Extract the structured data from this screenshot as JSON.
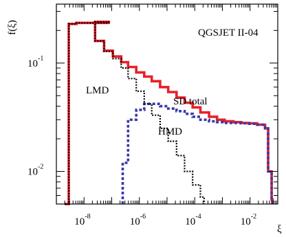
{
  "chart_data": {
    "type": "line",
    "title": "QGSJET II-04",
    "xlabel": "ξ",
    "ylabel": "f(ξ)",
    "x_scale": "log",
    "y_scale": "log",
    "xlim": [
      1e-09,
      0.1
    ],
    "ylim": [
      0.005,
      0.35
    ],
    "x_ticks": [
      {
        "base": "10",
        "exp": "-8",
        "value": 1e-08
      },
      {
        "base": "10",
        "exp": "-6",
        "value": 1e-06
      },
      {
        "base": "10",
        "exp": "-4",
        "value": 0.0001
      },
      {
        "base": "10",
        "exp": "-2",
        "value": 0.01
      }
    ],
    "y_ticks": [
      {
        "base": "10",
        "exp": "-1",
        "value": 0.1
      },
      {
        "base": "10",
        "exp": "-2",
        "value": 0.01
      }
    ],
    "legend": "none",
    "grid": false,
    "annotations": [
      {
        "text": "LMD",
        "series": "LMD"
      },
      {
        "text": "SD total",
        "series": "SD total"
      },
      {
        "text": "HMD",
        "series": "HMD"
      }
    ],
    "series": [
      {
        "name": "SD total",
        "color": "#e8202a",
        "style": "solid",
        "points": [
          [
            2e-09,
            0.005
          ],
          [
            2e-09,
            0.005
          ],
          [
            2.8e-09,
            0.23
          ],
          [
            5.3e-09,
            0.235
          ],
          [
            7.8e-08,
            0.24
          ],
          [
            2.5e-08,
            0.16
          ],
          [
            5.3e-08,
            0.13
          ],
          [
            1.1e-07,
            0.115
          ],
          [
            2.2e-07,
            0.102
          ],
          [
            3.9e-07,
            0.092
          ],
          [
            7.7e-07,
            0.082
          ],
          [
            1.5e-06,
            0.075
          ],
          [
            2.8e-06,
            0.068
          ],
          [
            5.6e-06,
            0.06
          ],
          [
            1.1e-05,
            0.054
          ],
          [
            2.2e-05,
            0.048
          ],
          [
            4.3e-05,
            0.043
          ],
          [
            8.4e-05,
            0.039
          ],
          [
            0.00016,
            0.035
          ],
          [
            0.00033,
            0.032
          ],
          [
            0.00064,
            0.03
          ],
          [
            0.0012,
            0.029
          ],
          [
            0.0025,
            0.0285
          ],
          [
            0.0048,
            0.028
          ],
          [
            0.0092,
            0.0278
          ],
          [
            0.018,
            0.027
          ],
          [
            0.035,
            0.025
          ],
          [
            0.045,
            0.01
          ],
          [
            0.06,
            0.0055
          ],
          [
            0.065,
            0.005
          ]
        ]
      },
      {
        "name": "LMD",
        "color": "#000000",
        "style": "dotted",
        "points": [
          [
            2e-09,
            0.005
          ],
          [
            2.8e-09,
            0.23
          ],
          [
            5.3e-09,
            0.235
          ],
          [
            7.8e-08,
            0.24
          ],
          [
            2.5e-08,
            0.16
          ],
          [
            5.3e-08,
            0.128
          ],
          [
            1.1e-07,
            0.11
          ],
          [
            2.2e-07,
            0.09
          ],
          [
            3.9e-07,
            0.072
          ],
          [
            7.7e-07,
            0.055
          ],
          [
            1.5e-06,
            0.042
          ],
          [
            2.8e-06,
            0.033
          ],
          [
            5.6e-06,
            0.025
          ],
          [
            1.1e-05,
            0.019
          ],
          [
            2.2e-05,
            0.014
          ],
          [
            4.3e-05,
            0.01
          ],
          [
            8.4e-05,
            0.0075
          ],
          [
            0.00016,
            0.0058
          ],
          [
            0.00022,
            0.005
          ]
        ]
      },
      {
        "name": "HMD",
        "color": "#3a3aa8",
        "style": "dashed",
        "points": [
          [
            2.5e-07,
            0.005
          ],
          [
            2.5e-07,
            0.012
          ],
          [
            3.9e-07,
            0.03
          ],
          [
            7.7e-07,
            0.037
          ],
          [
            1.5e-06,
            0.042
          ],
          [
            2.8e-06,
            0.042
          ],
          [
            5.6e-06,
            0.04
          ],
          [
            1.1e-05,
            0.038
          ],
          [
            2.2e-05,
            0.036
          ],
          [
            4.3e-05,
            0.034
          ],
          [
            8.4e-05,
            0.032
          ],
          [
            0.00016,
            0.03
          ],
          [
            0.00033,
            0.029
          ],
          [
            0.00064,
            0.0285
          ],
          [
            0.0012,
            0.028
          ],
          [
            0.0025,
            0.028
          ],
          [
            0.0048,
            0.0278
          ],
          [
            0.0092,
            0.0275
          ],
          [
            0.018,
            0.027
          ],
          [
            0.035,
            0.025
          ],
          [
            0.045,
            0.01
          ],
          [
            0.06,
            0.0055
          ],
          [
            0.065,
            0.005
          ]
        ]
      }
    ]
  }
}
